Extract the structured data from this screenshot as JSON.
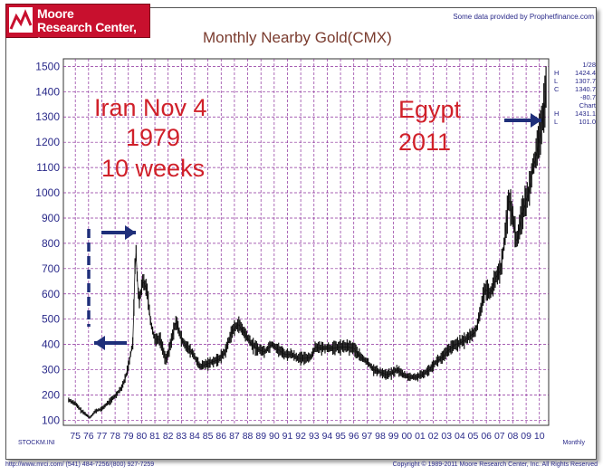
{
  "header": {
    "logo_line1": "Moore",
    "logo_line2": "Research Center, Inc.",
    "provided_by": "Some data provided by Prophetfinance.com"
  },
  "side_panel": {
    "date": "1/28",
    "rows": [
      {
        "k": "H",
        "v": "1424.4"
      },
      {
        "k": "L",
        "v": "1307.7"
      },
      {
        "k": "C",
        "v": "1340.7"
      },
      {
        "k": "",
        "v": "-80.7"
      },
      {
        "k": "",
        "v": "Chart"
      },
      {
        "k": "H",
        "v": "1431.1"
      },
      {
        "k": "L",
        "v": "101.0"
      }
    ]
  },
  "annotations": {
    "iran_line1": "Iran Nov 4",
    "iran_line2": "1979",
    "iran_line3": "10 weeks",
    "egypt_line1": "Egypt",
    "egypt_line2": "2011"
  },
  "footer": {
    "left": "http://www.mrci.com/   (541) 484-7256/(800) 927-7259",
    "right": "Copyright © 1989-2011 Moore Research Center, Inc. All Rights Reserved",
    "symbol": "STOCKM.INI",
    "period": "Monthly"
  },
  "colors": {
    "grid": "#8a2c9a",
    "price": "#111111",
    "arrow": "#1f2f7a",
    "annotation": "#d0202a"
  },
  "chart_data": {
    "type": "line",
    "title": "Monthly Nearby Gold(CMX)",
    "ylim": [
      100,
      1500
    ],
    "y_ticks": [
      100,
      200,
      300,
      400,
      500,
      600,
      700,
      800,
      900,
      1000,
      1100,
      1200,
      1300,
      1400,
      1500
    ],
    "x_ticks": [
      "75",
      "76",
      "77",
      "78",
      "79",
      "80",
      "81",
      "82",
      "83",
      "84",
      "85",
      "86",
      "87",
      "88",
      "89",
      "90",
      "91",
      "92",
      "93",
      "94",
      "95",
      "96",
      "97",
      "98",
      "99",
      "00",
      "01",
      "02",
      "03",
      "04",
      "05",
      "06",
      "07",
      "08",
      "09",
      "10"
    ],
    "grid": true,
    "series": [
      {
        "x": [
          1975.0,
          1975.5,
          1976.0,
          1976.6,
          1977.0,
          1977.5,
          1978.0,
          1978.5,
          1979.0,
          1979.3,
          1979.6,
          1979.85,
          1980.05,
          1980.15,
          1980.3,
          1980.6,
          1980.9,
          1981.2,
          1981.5,
          1981.9,
          1982.3,
          1982.5,
          1982.9,
          1983.1,
          1983.5,
          1983.9,
          1984.4,
          1984.9,
          1985.3,
          1985.8,
          1986.3,
          1986.8,
          1987.3,
          1987.8,
          1988.3,
          1988.8,
          1989.3,
          1989.8,
          1990.3,
          1990.8,
          1991.3,
          1991.8,
          1992.3,
          1992.8,
          1993.3,
          1993.6,
          1993.9,
          1994.5,
          1995.0,
          1995.5,
          1996.0,
          1996.5,
          1997.0,
          1997.5,
          1998.0,
          1998.5,
          1999.0,
          1999.5,
          1999.8,
          2000.2,
          2000.7,
          2001.2,
          2001.7,
          2002.2,
          2002.7,
          2003.2,
          2003.7,
          2004.2,
          2004.7,
          2005.2,
          2005.7,
          2006.0,
          2006.4,
          2006.8,
          2007.2,
          2007.6,
          2007.9,
          2008.2,
          2008.5,
          2008.8,
          2009.1,
          2009.4,
          2009.7,
          2010.0,
          2010.3,
          2010.6,
          2010.9,
          2011.05
        ],
        "y": [
          180,
          165,
          135,
          110,
          135,
          145,
          170,
          195,
          230,
          270,
          340,
          410,
          800,
          680,
          560,
          650,
          620,
          480,
          420,
          420,
          340,
          360,
          450,
          490,
          420,
          390,
          360,
          310,
          320,
          330,
          340,
          370,
          450,
          480,
          440,
          400,
          380,
          370,
          400,
          380,
          360,
          360,
          345,
          345,
          350,
          390,
          385,
          385,
          385,
          390,
          390,
          385,
          350,
          330,
          300,
          290,
          280,
          290,
          300,
          280,
          270,
          270,
          280,
          300,
          330,
          350,
          380,
          400,
          410,
          430,
          450,
          520,
          620,
          600,
          660,
          700,
          820,
          980,
          900,
          800,
          900,
          950,
          1000,
          1100,
          1150,
          1250,
          1350,
          1424
        ]
      }
    ]
  }
}
